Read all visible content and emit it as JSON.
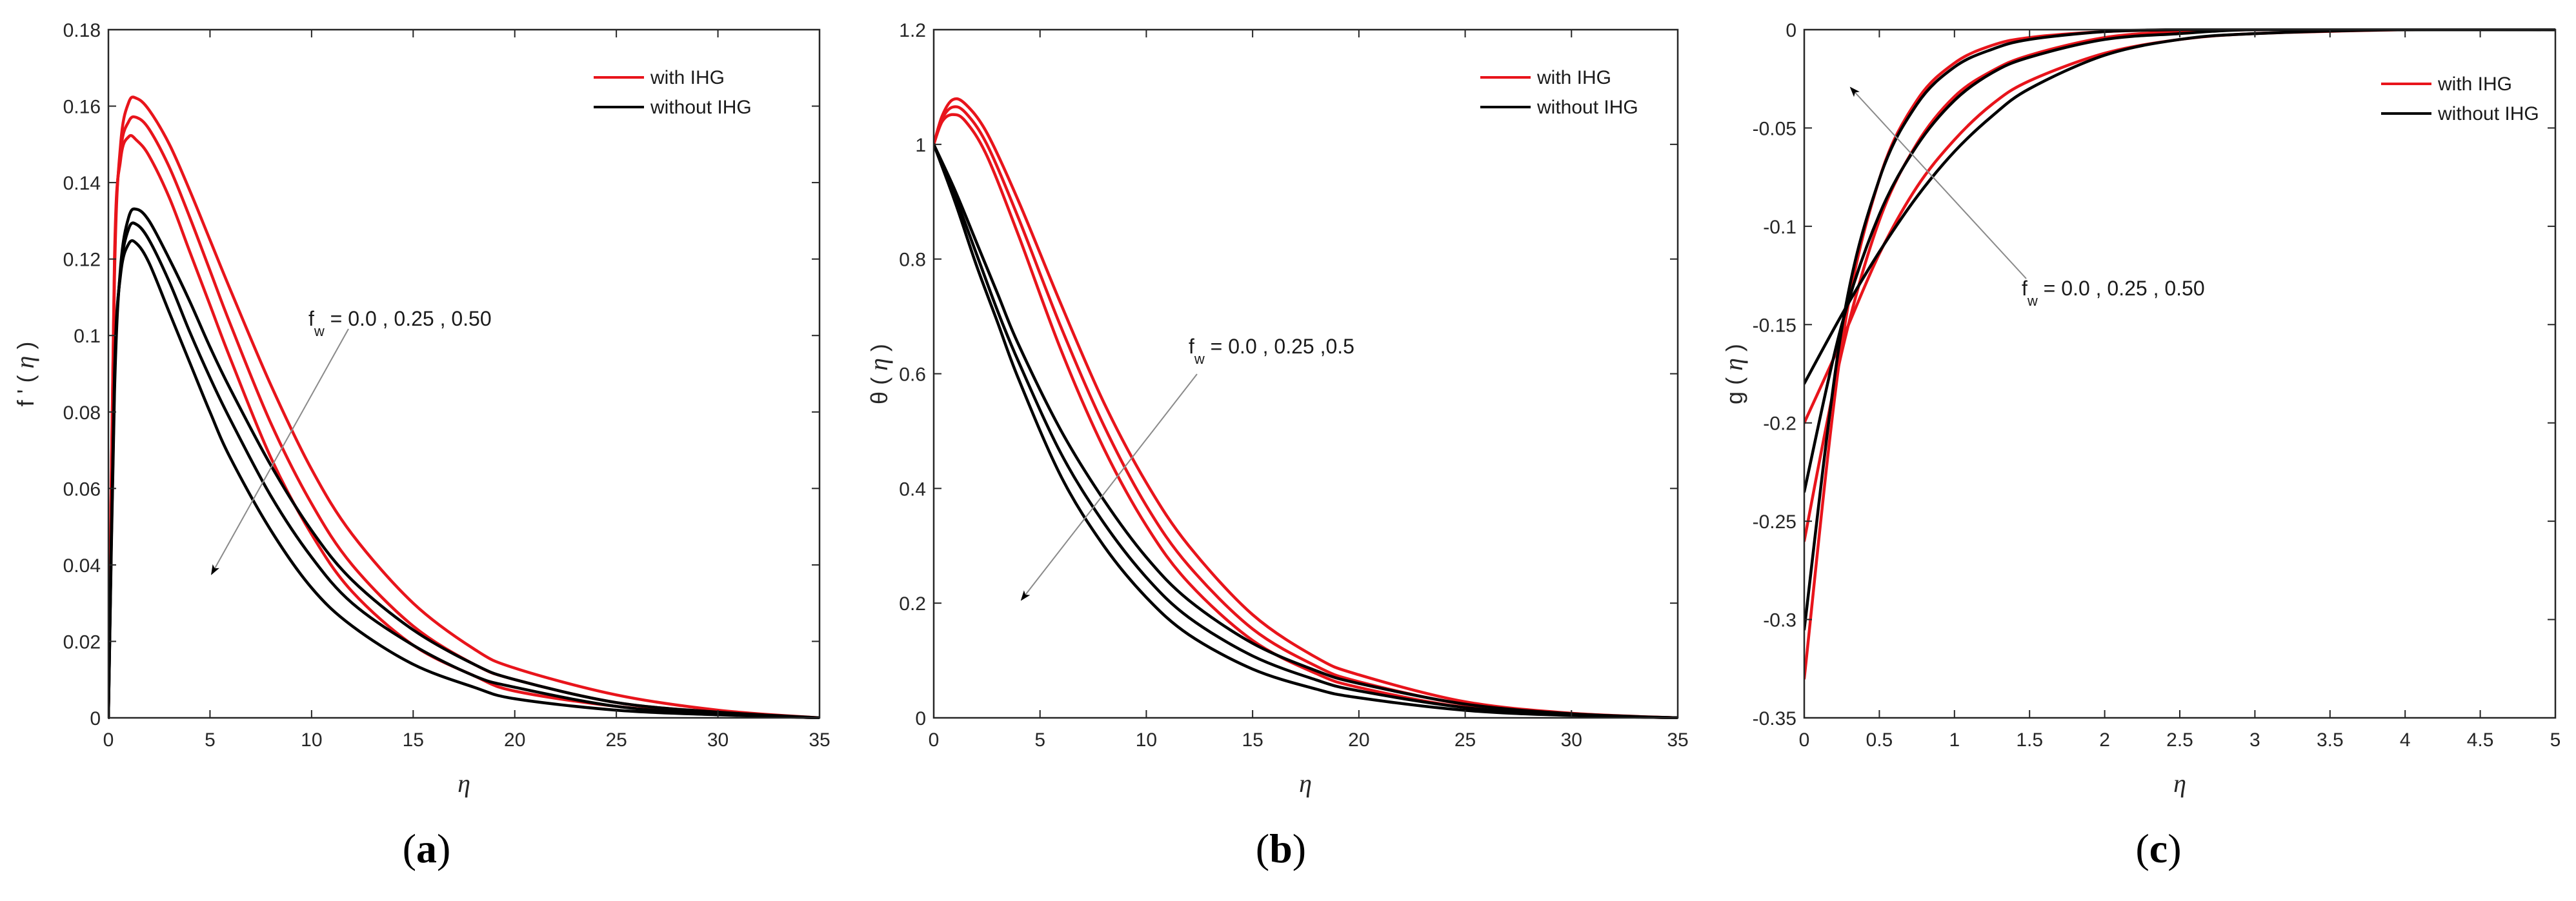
{
  "colors": {
    "with": "#e8141b",
    "without": "#000000",
    "axis": "#262626",
    "arrow": "#8a8a8a"
  },
  "chart_data": [
    {
      "id": "a",
      "type": "line",
      "panel_label": "a",
      "title": "",
      "xlabel": "η",
      "ylabel": "f ' ( η )",
      "ylabel_parts": {
        "pre": "f ' (",
        "sym": "η",
        "post": ")"
      },
      "xlim": [
        0,
        35
      ],
      "ylim": [
        0,
        0.18
      ],
      "xticks": [
        0,
        5,
        10,
        15,
        20,
        25,
        30,
        35
      ],
      "xtick_labels": [
        "0",
        "5",
        "10",
        "15",
        "20",
        "25",
        "30",
        "35"
      ],
      "yticks": [
        0,
        0.02,
        0.04,
        0.06,
        0.08,
        0.1,
        0.12,
        0.14,
        0.16,
        0.18
      ],
      "ytick_labels": [
        "0",
        "0.02",
        "0.04",
        "0.06",
        "0.08",
        "0.1",
        "0.12",
        "0.14",
        "0.16",
        "0.18"
      ],
      "legend": [
        "with IHG",
        "without IHG"
      ],
      "legend_position": "top-right",
      "annotation": {
        "prefix": "f",
        "sub": "w",
        "text": " = 0.0 , 0.25 , 0.50"
      },
      "series": [
        {
          "name": "with IHG (fw=0.0)",
          "group": "with",
          "x": [
            0,
            0.3,
            0.6,
            1,
            1.4,
            2,
            3,
            4,
            5,
            6,
            8,
            10,
            12,
            15,
            18,
            20,
            25,
            30,
            35
          ],
          "y": [
            0,
            0.115,
            0.15,
            0.161,
            0.162,
            0.159,
            0.15,
            0.138,
            0.125,
            0.112,
            0.087,
            0.065,
            0.048,
            0.03,
            0.018,
            0.013,
            0.006,
            0.002,
            0
          ]
        },
        {
          "name": "with IHG (fw=0.25)",
          "group": "with",
          "x": [
            0,
            0.3,
            0.6,
            1,
            1.4,
            2,
            3,
            4,
            5,
            6,
            8,
            10,
            12,
            15,
            18,
            20,
            25,
            30,
            35
          ],
          "y": [
            0,
            0.118,
            0.148,
            0.156,
            0.157,
            0.154,
            0.144,
            0.131,
            0.117,
            0.103,
            0.077,
            0.056,
            0.04,
            0.024,
            0.014,
            0.01,
            0.004,
            0.0015,
            0
          ]
        },
        {
          "name": "with IHG (fw=0.50)",
          "group": "with",
          "x": [
            0,
            0.3,
            0.6,
            1,
            1.4,
            2,
            3,
            4,
            5,
            6,
            8,
            10,
            12,
            15,
            18,
            20,
            25,
            30,
            35
          ],
          "y": [
            0,
            0.12,
            0.146,
            0.152,
            0.151,
            0.147,
            0.136,
            0.122,
            0.108,
            0.094,
            0.068,
            0.048,
            0.033,
            0.019,
            0.011,
            0.007,
            0.003,
            0.001,
            0
          ]
        },
        {
          "name": "without IHG (fw=0.0)",
          "group": "without",
          "x": [
            0,
            0.3,
            0.6,
            1,
            1.4,
            2,
            3,
            4,
            5,
            6,
            8,
            10,
            12,
            15,
            18,
            20,
            25,
            30,
            35
          ],
          "y": [
            0,
            0.085,
            0.118,
            0.131,
            0.133,
            0.13,
            0.12,
            0.109,
            0.097,
            0.086,
            0.066,
            0.049,
            0.036,
            0.023,
            0.014,
            0.01,
            0.004,
            0.0015,
            0
          ]
        },
        {
          "name": "without IHG (fw=0.25)",
          "group": "without",
          "x": [
            0,
            0.3,
            0.6,
            1,
            1.4,
            2,
            3,
            4,
            5,
            6,
            8,
            10,
            12,
            15,
            18,
            20,
            25,
            30,
            35
          ],
          "y": [
            0,
            0.088,
            0.117,
            0.128,
            0.129,
            0.125,
            0.114,
            0.101,
            0.089,
            0.078,
            0.058,
            0.042,
            0.03,
            0.019,
            0.011,
            0.008,
            0.003,
            0.001,
            0
          ]
        },
        {
          "name": "without IHG (fw=0.50)",
          "group": "without",
          "x": [
            0,
            0.3,
            0.6,
            1,
            1.4,
            2,
            3,
            4,
            5,
            6,
            8,
            10,
            12,
            15,
            18,
            20,
            25,
            30,
            35
          ],
          "y": [
            0,
            0.09,
            0.116,
            0.124,
            0.124,
            0.119,
            0.106,
            0.093,
            0.08,
            0.068,
            0.049,
            0.034,
            0.024,
            0.014,
            0.008,
            0.005,
            0.002,
            0.0008,
            0
          ]
        }
      ]
    },
    {
      "id": "b",
      "type": "line",
      "panel_label": "b",
      "title": "",
      "xlabel": "η",
      "ylabel": "θ ( η )",
      "ylabel_parts": {
        "pre": "θ (",
        "sym": "η",
        "post": ")"
      },
      "xlim": [
        0,
        35
      ],
      "ylim": [
        0,
        1.2
      ],
      "xticks": [
        0,
        5,
        10,
        15,
        20,
        25,
        30,
        35
      ],
      "xtick_labels": [
        "0",
        "5",
        "10",
        "15",
        "20",
        "25",
        "30",
        "35"
      ],
      "yticks": [
        0,
        0.2,
        0.4,
        0.6,
        0.8,
        1,
        1.2
      ],
      "ytick_labels": [
        "0",
        "0.2",
        "0.4",
        "0.6",
        "0.8",
        "1",
        "1.2"
      ],
      "legend": [
        "with IHG",
        "without IHG"
      ],
      "legend_position": "top-right",
      "annotation": {
        "prefix": "f",
        "sub": "w",
        "text": " = 0.0 , 0.25 ,0.5"
      },
      "series": [
        {
          "name": "with IHG (fw=0.0)",
          "group": "with",
          "x": [
            0,
            0.4,
            0.9,
            1.5,
            2.5,
            4,
            6,
            8,
            10,
            12,
            15,
            18,
            20,
            25,
            30,
            35
          ],
          "y": [
            1,
            1.05,
            1.078,
            1.07,
            1.02,
            0.9,
            0.72,
            0.55,
            0.41,
            0.3,
            0.18,
            0.105,
            0.075,
            0.028,
            0.008,
            0
          ],
          "lw": 1
        },
        {
          "name": "with IHG (fw=0.25)",
          "group": "with",
          "x": [
            0,
            0.4,
            0.9,
            1.5,
            2.5,
            4,
            6,
            8,
            10,
            12,
            15,
            18,
            20,
            25,
            30,
            35
          ],
          "y": [
            1,
            1.045,
            1.065,
            1.055,
            1.0,
            0.87,
            0.68,
            0.51,
            0.37,
            0.265,
            0.155,
            0.09,
            0.063,
            0.023,
            0.006,
            0
          ],
          "lw": 1
        },
        {
          "name": "with IHG (fw=0.50)",
          "group": "with",
          "x": [
            0,
            0.4,
            0.9,
            1.5,
            2.5,
            4,
            6,
            8,
            10,
            12,
            15,
            18,
            20,
            25,
            30,
            35
          ],
          "y": [
            1,
            1.04,
            1.052,
            1.04,
            0.98,
            0.84,
            0.64,
            0.47,
            0.335,
            0.235,
            0.135,
            0.077,
            0.053,
            0.018,
            0.005,
            0
          ],
          "lw": 1
        },
        {
          "name": "without IHG (fw=0.0)",
          "group": "without",
          "x": [
            0,
            1,
            2,
            3,
            4,
            6,
            8,
            10,
            12,
            15,
            18,
            20,
            25,
            30,
            35
          ],
          "y": [
            1,
            0.92,
            0.83,
            0.74,
            0.65,
            0.5,
            0.38,
            0.28,
            0.205,
            0.13,
            0.082,
            0.06,
            0.024,
            0.007,
            0
          ]
        },
        {
          "name": "without IHG (fw=0.25)",
          "group": "without",
          "x": [
            0,
            1,
            2,
            3,
            4,
            6,
            8,
            10,
            12,
            15,
            18,
            20,
            25,
            30,
            35
          ],
          "y": [
            1,
            0.91,
            0.81,
            0.71,
            0.62,
            0.46,
            0.34,
            0.245,
            0.175,
            0.108,
            0.066,
            0.047,
            0.018,
            0.005,
            0
          ]
        },
        {
          "name": "without IHG (fw=0.50)",
          "group": "without",
          "x": [
            0,
            1,
            2,
            3,
            4,
            6,
            8,
            10,
            12,
            15,
            18,
            20,
            25,
            30,
            35
          ],
          "y": [
            1,
            0.9,
            0.79,
            0.69,
            0.59,
            0.42,
            0.3,
            0.21,
            0.145,
            0.085,
            0.05,
            0.035,
            0.013,
            0.004,
            0
          ]
        }
      ]
    },
    {
      "id": "c",
      "type": "line",
      "panel_label": "c",
      "title": "",
      "xlabel": "η",
      "ylabel": "g ( η )",
      "ylabel_parts": {
        "pre": "g (",
        "sym": "η",
        "post": ")"
      },
      "xlim": [
        0,
        5
      ],
      "ylim": [
        -0.35,
        0
      ],
      "xticks": [
        0,
        0.5,
        1,
        1.5,
        2,
        2.5,
        3,
        3.5,
        4,
        4.5,
        5
      ],
      "xtick_labels": [
        "0",
        "0.5",
        "1",
        "1.5",
        "2",
        "2.5",
        "3",
        "3.5",
        "4",
        "4.5",
        "5"
      ],
      "yticks": [
        -0.35,
        -0.3,
        -0.25,
        -0.2,
        -0.15,
        -0.1,
        -0.05,
        0
      ],
      "ytick_labels": [
        "-0.35",
        "-0.3",
        "-0.25",
        "-0.2",
        "-0.15",
        "-0.1",
        "-0.05",
        "0"
      ],
      "legend": [
        "with IHG",
        "without IHG"
      ],
      "legend_position": "top-right",
      "annotation": {
        "prefix": "f",
        "sub": "w",
        "text": " = 0.0 , 0.25 , 0.50"
      },
      "series": [
        {
          "name": "with IHG (fw=0.0)",
          "group": "with",
          "x": [
            0,
            0.25,
            0.5,
            0.75,
            1,
            1.25,
            1.5,
            2,
            2.5,
            3,
            4,
            5
          ],
          "y": [
            -0.2,
            -0.158,
            -0.114,
            -0.08,
            -0.056,
            -0.038,
            -0.026,
            -0.012,
            -0.005,
            -0.002,
            0,
            0.001
          ]
        },
        {
          "name": "with IHG (fw=0.25)",
          "group": "with",
          "x": [
            0,
            0.25,
            0.5,
            0.75,
            1,
            1.25,
            1.5,
            2,
            2.5,
            3,
            4,
            5
          ],
          "y": [
            -0.26,
            -0.164,
            -0.097,
            -0.058,
            -0.034,
            -0.021,
            -0.013,
            -0.004,
            -0.001,
            0,
            0.001,
            0.001
          ]
        },
        {
          "name": "with IHG (fw=0.50)",
          "group": "with",
          "x": [
            0,
            0.25,
            0.5,
            0.75,
            1,
            1.25,
            1.5,
            2,
            2.5,
            3,
            4,
            5
          ],
          "y": [
            -0.33,
            -0.16,
            -0.076,
            -0.036,
            -0.017,
            -0.008,
            -0.004,
            -0.001,
            0,
            0.001,
            0.001,
            0.001
          ]
        },
        {
          "name": "without IHG (fw=0.0)",
          "group": "without",
          "x": [
            0,
            0.25,
            0.5,
            0.75,
            1,
            1.25,
            1.5,
            2,
            2.5,
            3,
            4,
            5
          ],
          "y": [
            -0.18,
            -0.145,
            -0.113,
            -0.085,
            -0.062,
            -0.044,
            -0.03,
            -0.013,
            -0.005,
            -0.002,
            0,
            0
          ]
        },
        {
          "name": "without IHG (fw=0.25)",
          "group": "without",
          "x": [
            0,
            0.25,
            0.5,
            0.75,
            1,
            1.25,
            1.5,
            2,
            2.5,
            3,
            4,
            5
          ],
          "y": [
            -0.235,
            -0.15,
            -0.094,
            -0.059,
            -0.036,
            -0.022,
            -0.014,
            -0.005,
            -0.002,
            0,
            0,
            0
          ]
        },
        {
          "name": "without IHG (fw=0.50)",
          "group": "without",
          "x": [
            0,
            0.25,
            0.5,
            0.75,
            1,
            1.25,
            1.5,
            2,
            2.5,
            3,
            4,
            5
          ],
          "y": [
            -0.305,
            -0.152,
            -0.076,
            -0.038,
            -0.019,
            -0.01,
            -0.005,
            -0.001,
            0,
            0,
            0,
            0
          ]
        }
      ]
    }
  ]
}
